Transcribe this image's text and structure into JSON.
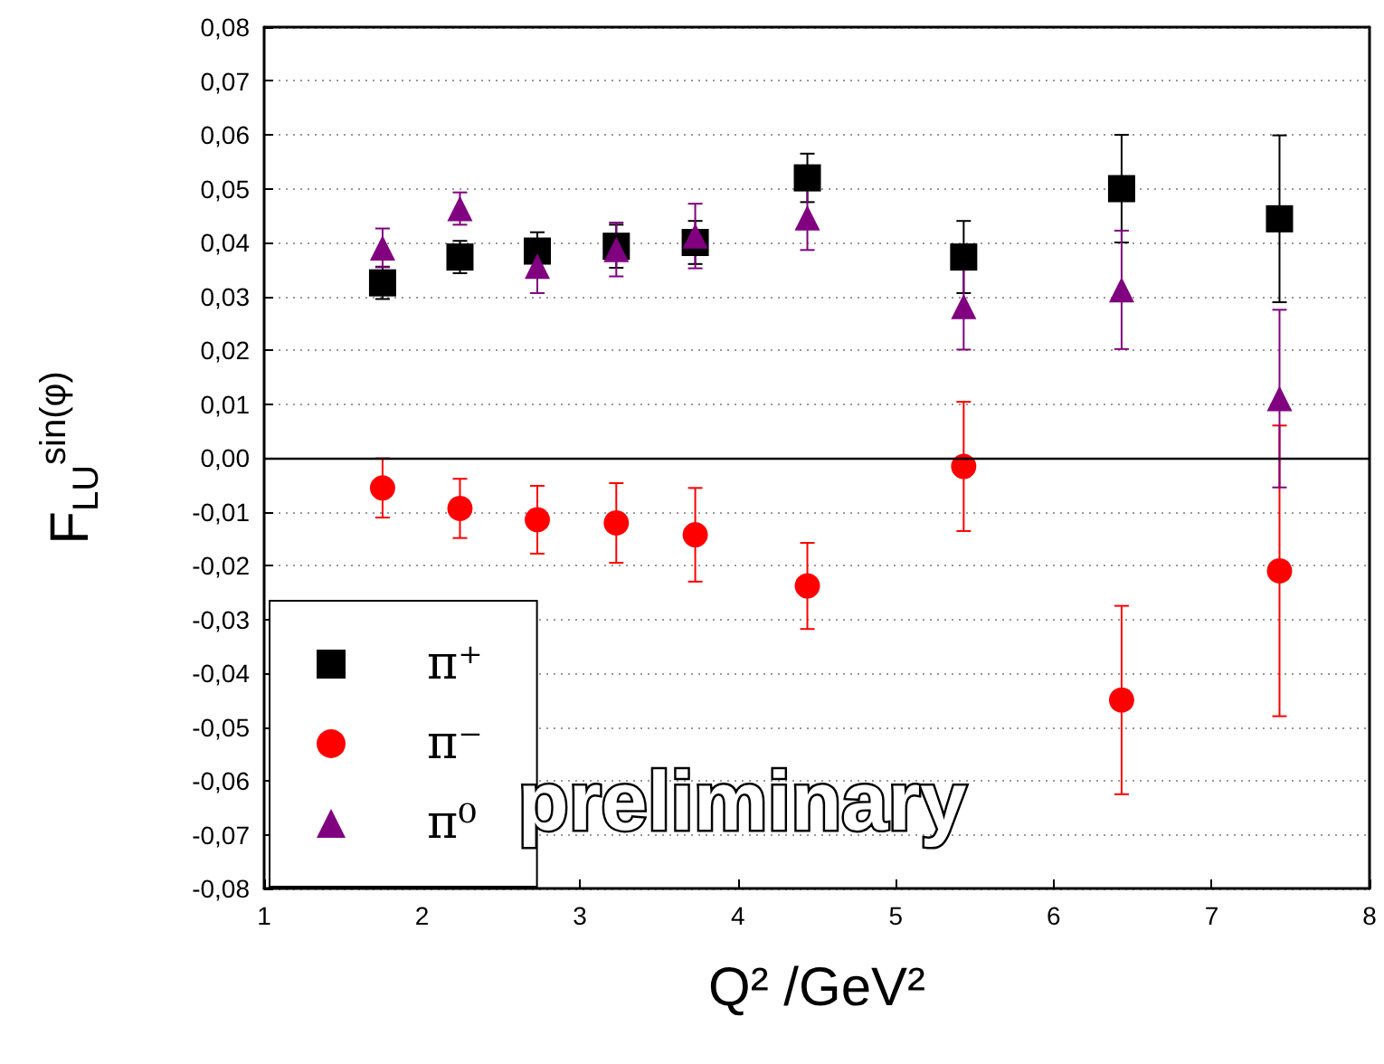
{
  "chart_data": {
    "type": "scatter",
    "xlabel": "Q² /GeV²",
    "ylabel": "F$_{LU}$$^{sin(φ)}$",
    "xlim": [
      1,
      8
    ],
    "xticks": [
      1,
      2,
      3,
      4,
      5,
      6,
      7,
      8
    ],
    "ylim": [
      -0.08,
      0.08
    ],
    "yticks": [
      {
        "value": -0.08,
        "label": "-0,08"
      },
      {
        "value": -0.07,
        "label": "-0,07"
      },
      {
        "value": -0.06,
        "label": "-0,06"
      },
      {
        "value": -0.05,
        "label": "-0,05"
      },
      {
        "value": -0.04,
        "label": "-0,04"
      },
      {
        "value": -0.03,
        "label": "-0,03"
      },
      {
        "value": -0.02,
        "label": "-0,02"
      },
      {
        "value": -0.01,
        "label": "-0,01"
      },
      {
        "value": 0,
        "label": "0,00"
      },
      {
        "value": 0.01,
        "label": "0,01"
      },
      {
        "value": 0.02,
        "label": "0,02"
      },
      {
        "value": 0.03,
        "label": "0,03"
      },
      {
        "value": 0.04,
        "label": "0,04"
      },
      {
        "value": 0.05,
        "label": "0,05"
      },
      {
        "value": 0.06,
        "label": "0,06"
      },
      {
        "value": 0.07,
        "label": "0,07"
      },
      {
        "value": 0.08,
        "label": "0,08"
      }
    ],
    "x": [
      1.75,
      2.24,
      2.73,
      3.23,
      3.73,
      4.44,
      5.43,
      6.43,
      7.43
    ],
    "series": [
      {
        "name": "π⁺",
        "color": "#000000",
        "marker": "square",
        "values": [
          0.0325,
          0.0373,
          0.0384,
          0.0393,
          0.04,
          0.052,
          0.0373,
          0.05,
          0.0444
        ],
        "errors": [
          0.003,
          0.003,
          0.0035,
          0.004,
          0.004,
          0.0045,
          0.0067,
          0.01,
          0.0155
        ]
      },
      {
        "name": "π⁻",
        "color": "#ff0000",
        "marker": "circle",
        "values": [
          -0.0056,
          -0.0094,
          -0.0115,
          -0.0121,
          -0.0143,
          -0.0238,
          -0.0016,
          -0.045,
          -0.021
        ],
        "errors": [
          0.0055,
          0.0055,
          0.0063,
          0.0074,
          0.0087,
          0.008,
          0.012,
          0.0175,
          0.027
        ]
      },
      {
        "name": "π⁰",
        "color": "#800080",
        "marker": "triangle",
        "values": [
          0.039,
          0.0463,
          0.0356,
          0.0387,
          0.0412,
          0.0446,
          0.0281,
          0.0312,
          0.011
        ],
        "errors": [
          0.0036,
          0.003,
          0.005,
          0.005,
          0.006,
          0.006,
          0.008,
          0.011,
          0.0165
        ]
      }
    ],
    "ref_lines": [
      {
        "axis": "y",
        "value": 0,
        "color": "#000000",
        "line_style": "solid"
      }
    ],
    "annotations": [
      "preliminary"
    ],
    "grid": "y",
    "legend": "bottom left"
  }
}
